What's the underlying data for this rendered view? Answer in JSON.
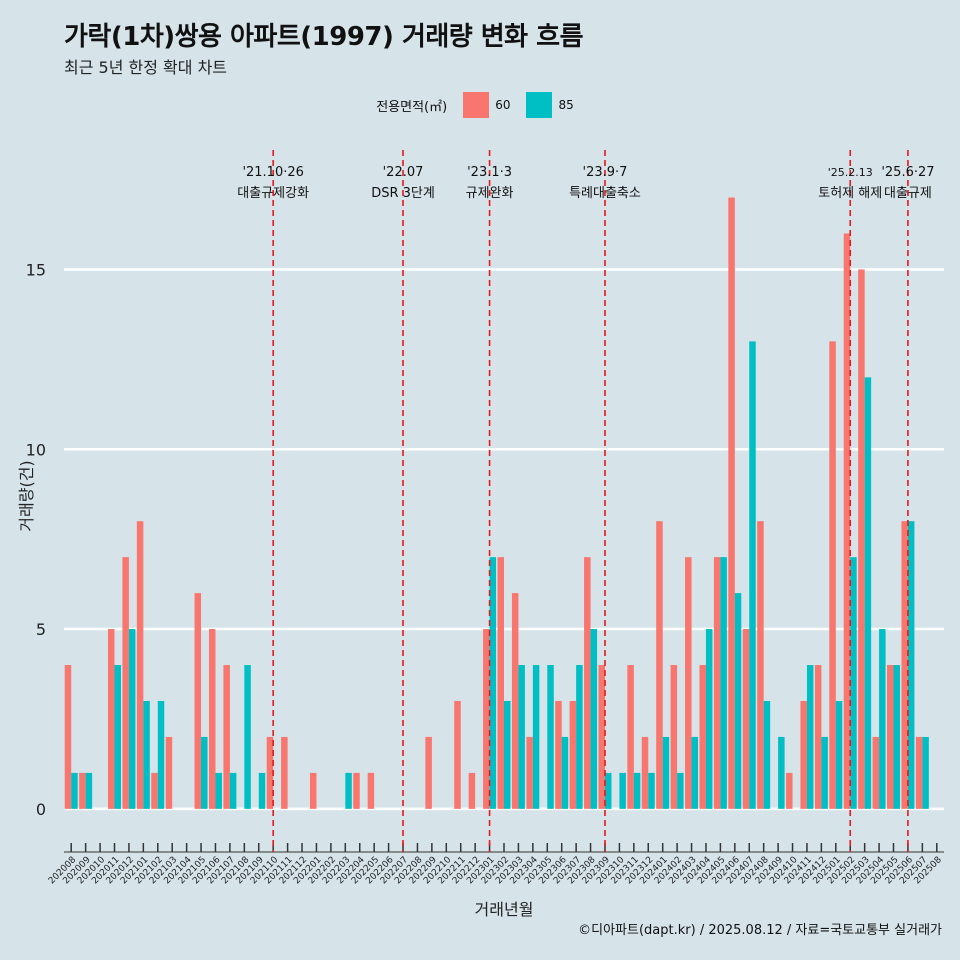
{
  "title": "가락(1차)쌍용 아파트(1997) 거래량 변화 흐름",
  "subtitle": "최근 5년 한정 확대 차트",
  "caption": "©디아파트(dapt.kr) / 2025.08.12 / 자료=국토교통부 실거래가",
  "legend": {
    "title": "전용면적(㎡)",
    "items": [
      {
        "label": "60",
        "color": "#f8766d"
      },
      {
        "label": "85",
        "color": "#00bfc4"
      }
    ]
  },
  "chart_data": {
    "type": "bar",
    "xlabel": "거래년월",
    "ylabel": "거래량(건)",
    "ylim": [
      -1.2,
      18.6
    ],
    "yticks": [
      0,
      5,
      10,
      15
    ],
    "grid": true,
    "categories": [
      "202008",
      "202009",
      "202010",
      "202011",
      "202012",
      "202101",
      "202102",
      "202103",
      "202104",
      "202105",
      "202106",
      "202107",
      "202108",
      "202109",
      "202110",
      "202111",
      "202112",
      "202201",
      "202202",
      "202203",
      "202204",
      "202205",
      "202206",
      "202207",
      "202208",
      "202209",
      "202210",
      "202211",
      "202212",
      "202301",
      "202302",
      "202303",
      "202304",
      "202305",
      "202306",
      "202307",
      "202308",
      "202309",
      "202310",
      "202311",
      "202312",
      "202401",
      "202402",
      "202403",
      "202404",
      "202405",
      "202406",
      "202407",
      "202408",
      "202409",
      "202410",
      "202411",
      "202412",
      "202501",
      "202502",
      "202503",
      "202504",
      "202505",
      "202506",
      "202507",
      "202508"
    ],
    "series": [
      {
        "name": "60",
        "color": "#f8766d",
        "values": [
          4,
          1,
          0,
          5,
          7,
          8,
          1,
          2,
          0,
          6,
          5,
          4,
          0,
          0,
          2,
          2,
          0,
          1,
          0,
          0,
          1,
          1,
          0,
          0,
          0,
          2,
          0,
          3,
          1,
          5,
          7,
          6,
          2,
          0,
          3,
          3,
          7,
          4,
          0,
          4,
          2,
          8,
          4,
          7,
          4,
          7,
          17,
          5,
          8,
          0,
          1,
          3,
          4,
          13,
          16,
          15,
          2,
          4,
          8,
          2,
          0
        ]
      },
      {
        "name": "85",
        "color": "#00bfc4",
        "values": [
          1,
          1,
          0,
          4,
          5,
          3,
          3,
          0,
          0,
          2,
          1,
          1,
          4,
          1,
          0,
          0,
          0,
          0,
          0,
          1,
          0,
          0,
          0,
          0,
          0,
          0,
          0,
          0,
          0,
          7,
          3,
          4,
          4,
          4,
          2,
          4,
          5,
          1,
          1,
          1,
          1,
          2,
          1,
          2,
          5,
          7,
          6,
          13,
          3,
          2,
          0,
          4,
          2,
          3,
          7,
          12,
          5,
          4,
          8,
          2,
          0
        ]
      }
    ],
    "annotations": [
      {
        "category": "202110",
        "line1": "'21.10·26",
        "line2": "대출규제강화"
      },
      {
        "category": "202207",
        "line1": "'22.07",
        "line2": "DSR 3단계"
      },
      {
        "category": "202301",
        "line1": "'23.1·3",
        "line2": "규제완화"
      },
      {
        "category": "202309",
        "line1": "'23.9·7",
        "line2": "특례대출축소"
      },
      {
        "category": "202502",
        "line1": "'25.2.13",
        "line2": "토허제 해제"
      },
      {
        "category": "202506",
        "line1": "'25.6·27",
        "line2": "대출규제"
      }
    ]
  }
}
